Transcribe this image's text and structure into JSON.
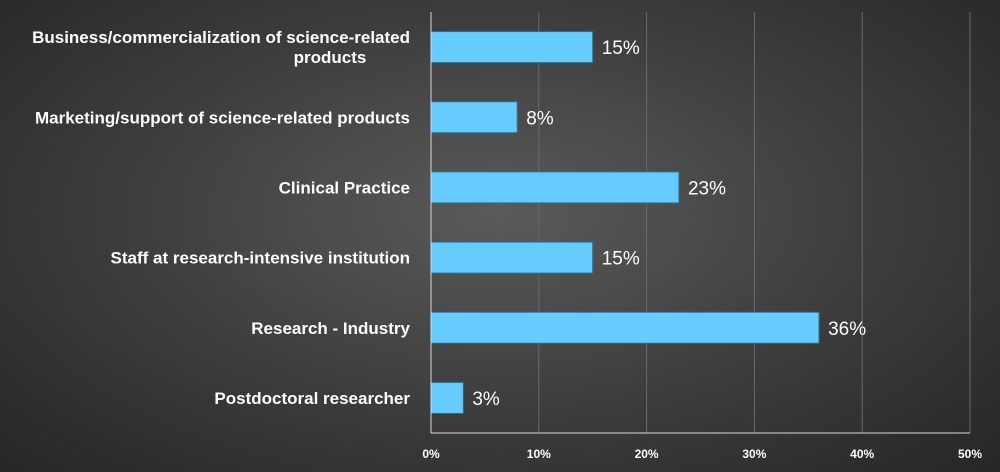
{
  "colors": {
    "bar": "#66ccff"
  },
  "chart_data": {
    "type": "bar",
    "orientation": "horizontal",
    "categories": [
      [
        "Business/commercialization of science-related",
        "products"
      ],
      [
        "Marketing/support of science-related products"
      ],
      [
        "Clinical Practice"
      ],
      [
        "Staff at research-intensive institution"
      ],
      [
        "Research - Industry"
      ],
      [
        "Postdoctoral researcher"
      ]
    ],
    "values": [
      15,
      8,
      23,
      15,
      36,
      3
    ],
    "data_labels": [
      "15%",
      "8%",
      "23%",
      "15%",
      "36%",
      "3%"
    ],
    "x_ticks": [
      "0%",
      "10%",
      "20%",
      "30%",
      "40%",
      "50%"
    ],
    "xlim": [
      0,
      50
    ],
    "grid": true,
    "legend": "none",
    "title": "",
    "xlabel": "",
    "ylabel": ""
  }
}
